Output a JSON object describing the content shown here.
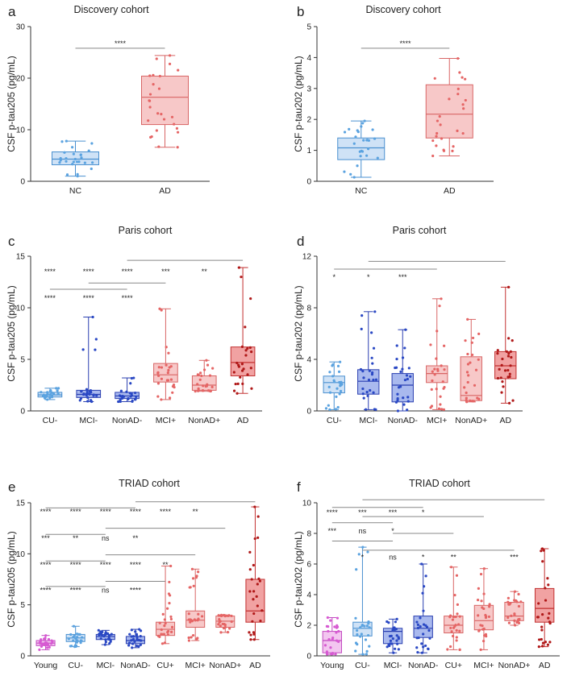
{
  "colors": {
    "light_blue": "#5ba3e0",
    "blue": "#2a48c4",
    "light_red": "#ef8a8a",
    "red": "#d94545",
    "dark_red": "#b01818",
    "magenta": "#d75ad2",
    "axis": "#333333",
    "bracket": "#888888"
  },
  "chart_data": [
    {
      "panel": "a",
      "type": "box",
      "title": "Discovery cohort",
      "ylabel": "CSF p-tau205 (pg/mL)",
      "ylim": [
        0,
        30
      ],
      "yticks": [
        0,
        10,
        20,
        30
      ],
      "categories": [
        "NC",
        "AD"
      ],
      "boxes": [
        {
          "min": 1.0,
          "q1": 3.2,
          "median": 4.3,
          "q3": 5.7,
          "max": 7.8,
          "color": "light_blue"
        },
        {
          "min": 6.6,
          "q1": 11.0,
          "median": 16.3,
          "q3": 20.4,
          "max": 24.4,
          "color": "light_red"
        }
      ],
      "brackets": [
        {
          "from": 0,
          "to": 1,
          "y": 25.8,
          "label": "****"
        }
      ]
    },
    {
      "panel": "b",
      "type": "box",
      "title": "Discovery cohort",
      "ylabel": "CSF p-tau202 (pg/mL)",
      "ylim": [
        0,
        5
      ],
      "yticks": [
        0,
        1,
        2,
        3,
        4,
        5
      ],
      "categories": [
        "NC",
        "AD"
      ],
      "boxes": [
        {
          "min": 0.13,
          "q1": 0.7,
          "median": 1.08,
          "q3": 1.4,
          "max": 1.95,
          "color": "light_blue"
        },
        {
          "min": 0.82,
          "q1": 1.4,
          "median": 2.17,
          "q3": 3.12,
          "max": 3.97,
          "color": "light_red"
        }
      ],
      "brackets": [
        {
          "from": 0,
          "to": 1,
          "y": 4.3,
          "label": "****"
        }
      ]
    },
    {
      "panel": "c",
      "type": "box",
      "title": "Paris cohort",
      "ylabel": "CSF p-tau205 (pg/mL)",
      "ylim": [
        0,
        15
      ],
      "yticks": [
        0,
        5,
        10,
        15
      ],
      "categories": [
        "CU-",
        "MCI-",
        "NonAD-",
        "MCI+",
        "NonAD+",
        "AD"
      ],
      "boxes": [
        {
          "min": 1.1,
          "q1": 1.35,
          "median": 1.55,
          "q3": 1.8,
          "max": 2.2,
          "color": "light_blue"
        },
        {
          "min": 0.9,
          "q1": 1.3,
          "median": 1.6,
          "q3": 2.0,
          "max": 9.1,
          "color": "blue"
        },
        {
          "min": 0.9,
          "q1": 1.2,
          "median": 1.45,
          "q3": 1.8,
          "max": 3.2,
          "color": "blue"
        },
        {
          "min": 1.1,
          "q1": 2.8,
          "median": 3.5,
          "q3": 4.6,
          "max": 9.9,
          "color": "light_red"
        },
        {
          "min": 1.9,
          "q1": 2.0,
          "median": 2.5,
          "q3": 3.4,
          "max": 4.9,
          "color": "light_red"
        },
        {
          "min": 1.7,
          "q1": 3.4,
          "median": 4.7,
          "q3": 6.2,
          "max": 13.9,
          "color": "red"
        }
      ],
      "brackets": [
        {
          "from": 2,
          "to": 5,
          "y": 14.6,
          "label": ""
        },
        {
          "from": 1,
          "to": 3,
          "y": 12.4,
          "label": ""
        },
        {
          "from": 0,
          "to": 2,
          "y": 11.8,
          "label": ""
        }
      ],
      "annotations": [
        {
          "x": 0,
          "y": 13.3,
          "label": "****"
        },
        {
          "x": 1,
          "y": 13.3,
          "label": "****"
        },
        {
          "x": 2,
          "y": 13.3,
          "label": "****"
        },
        {
          "x": 3,
          "y": 13.3,
          "label": "***"
        },
        {
          "x": 4,
          "y": 13.3,
          "label": "**"
        },
        {
          "x": 0,
          "y": 10.7,
          "label": "****"
        },
        {
          "x": 1,
          "y": 10.7,
          "label": "****"
        },
        {
          "x": 2,
          "y": 10.7,
          "label": "****"
        }
      ]
    },
    {
      "panel": "d",
      "type": "box",
      "title": "Paris cohort",
      "ylabel": "CSF p-tau202 (pg/mL)",
      "ylim": [
        0,
        12
      ],
      "yticks": [
        0,
        4,
        8,
        12
      ],
      "categories": [
        "CU-",
        "MCI-",
        "NonAD-",
        "MCI+",
        "NonAD+",
        "AD"
      ],
      "boxes": [
        {
          "min": 0.1,
          "q1": 1.4,
          "median": 2.2,
          "q3": 2.7,
          "max": 3.8,
          "color": "light_blue"
        },
        {
          "min": 0.1,
          "q1": 1.3,
          "median": 2.3,
          "q3": 3.2,
          "max": 7.7,
          "color": "blue"
        },
        {
          "min": 0.0,
          "q1": 0.7,
          "median": 2.0,
          "q3": 2.9,
          "max": 6.3,
          "color": "blue"
        },
        {
          "min": 0.1,
          "q1": 2.2,
          "median": 2.9,
          "q3": 3.5,
          "max": 8.7,
          "color": "light_red"
        },
        {
          "min": 0.7,
          "q1": 0.8,
          "median": 1.2,
          "q3": 4.2,
          "max": 7.1,
          "color": "light_red"
        },
        {
          "min": 0.6,
          "q1": 2.5,
          "median": 3.5,
          "q3": 4.6,
          "max": 9.6,
          "color": "red"
        }
      ],
      "brackets": [
        {
          "from": 1,
          "to": 5,
          "y": 11.6,
          "label": ""
        },
        {
          "from": 0,
          "to": 3,
          "y": 11.0,
          "label": ""
        }
      ],
      "annotations": [
        {
          "x": 0,
          "y": 10.2,
          "label": "*"
        },
        {
          "x": 1,
          "y": 10.2,
          "label": "*"
        },
        {
          "x": 2,
          "y": 10.2,
          "label": "***"
        }
      ]
    },
    {
      "panel": "e",
      "type": "box",
      "title": "TRIAD cohort",
      "ylabel": "CSF p-tau205 (pg/mL)",
      "ylim": [
        0,
        15
      ],
      "yticks": [
        0,
        5,
        10,
        15
      ],
      "categories": [
        "Young",
        "CU-",
        "MCI-",
        "NonAD-",
        "CU+",
        "MCI+",
        "NonAD+",
        "AD"
      ],
      "boxes": [
        {
          "min": 0.6,
          "q1": 1.0,
          "median": 1.25,
          "q3": 1.5,
          "max": 2.0,
          "color": "magenta"
        },
        {
          "min": 0.9,
          "q1": 1.4,
          "median": 1.75,
          "q3": 2.1,
          "max": 2.9,
          "color": "light_blue"
        },
        {
          "min": 1.1,
          "q1": 1.6,
          "median": 1.9,
          "q3": 2.1,
          "max": 2.5,
          "color": "blue"
        },
        {
          "min": 0.8,
          "q1": 1.2,
          "median": 1.5,
          "q3": 1.9,
          "max": 2.6,
          "color": "blue"
        },
        {
          "min": 1.2,
          "q1": 2.0,
          "median": 2.6,
          "q3": 3.3,
          "max": 8.8,
          "color": "light_red"
        },
        {
          "min": 1.5,
          "q1": 2.8,
          "median": 3.5,
          "q3": 4.4,
          "max": 8.5,
          "color": "light_red"
        },
        {
          "min": 2.3,
          "q1": 2.8,
          "median": 3.4,
          "q3": 3.9,
          "max": 4.0,
          "color": "light_red"
        },
        {
          "min": 1.6,
          "q1": 3.3,
          "median": 4.4,
          "q3": 7.5,
          "max": 14.6,
          "color": "red"
        }
      ],
      "brackets": [
        {
          "from": 0,
          "to": 3,
          "y": 14.5,
          "label": ""
        },
        {
          "from": 3,
          "to": 7,
          "y": 15.1,
          "label": ""
        },
        {
          "from": 0,
          "to": 2,
          "y": 11.9,
          "label": ""
        },
        {
          "from": 2,
          "to": 6,
          "y": 12.5,
          "label": ""
        },
        {
          "from": 0,
          "to": 2,
          "y": 9.3,
          "label": ""
        },
        {
          "from": 2,
          "to": 5,
          "y": 9.9,
          "label": ""
        },
        {
          "from": 0,
          "to": 2,
          "y": 6.8,
          "label": ""
        },
        {
          "from": 2,
          "to": 4,
          "y": 7.3,
          "label": ""
        }
      ],
      "annotations": [
        {
          "x": 0,
          "y": 13.9,
          "label": "****"
        },
        {
          "x": 1,
          "y": 13.9,
          "label": "****"
        },
        {
          "x": 2,
          "y": 13.9,
          "label": "****"
        },
        {
          "x": 3,
          "y": 13.9,
          "label": "****"
        },
        {
          "x": 4,
          "y": 13.9,
          "label": "****"
        },
        {
          "x": 5,
          "y": 13.9,
          "label": "**"
        },
        {
          "x": 0,
          "y": 11.3,
          "label": "***"
        },
        {
          "x": 1,
          "y": 11.3,
          "label": "**"
        },
        {
          "x": 2,
          "y": 11.3,
          "label": "ns"
        },
        {
          "x": 3,
          "y": 11.3,
          "label": "**"
        },
        {
          "x": 0,
          "y": 8.7,
          "label": "****"
        },
        {
          "x": 1,
          "y": 8.7,
          "label": "****"
        },
        {
          "x": 2,
          "y": 8.7,
          "label": "****"
        },
        {
          "x": 3,
          "y": 8.7,
          "label": "****"
        },
        {
          "x": 4,
          "y": 8.7,
          "label": "**"
        },
        {
          "x": 0,
          "y": 6.2,
          "label": "****"
        },
        {
          "x": 1,
          "y": 6.2,
          "label": "****"
        },
        {
          "x": 2,
          "y": 6.2,
          "label": "ns"
        },
        {
          "x": 3,
          "y": 6.2,
          "label": "****"
        }
      ]
    },
    {
      "panel": "f",
      "type": "box",
      "title": "TRIAD cohort",
      "ylabel": "CSF p-tau202 (pg/mL)",
      "ylim": [
        0,
        10
      ],
      "yticks": [
        0,
        2,
        4,
        6,
        8,
        10
      ],
      "categories": [
        "Young",
        "CU-",
        "MCI-",
        "NonAD-",
        "CU+",
        "MCI+",
        "NonAD+",
        "AD"
      ],
      "boxes": [
        {
          "min": 0.1,
          "q1": 0.2,
          "median": 1.0,
          "q3": 1.6,
          "max": 2.5,
          "color": "magenta"
        },
        {
          "min": 0.1,
          "q1": 1.3,
          "median": 1.8,
          "q3": 2.2,
          "max": 7.1,
          "color": "light_blue"
        },
        {
          "min": 0.2,
          "q1": 0.8,
          "median": 1.6,
          "q3": 1.8,
          "max": 2.4,
          "color": "blue"
        },
        {
          "min": 0.2,
          "q1": 1.2,
          "median": 1.8,
          "q3": 2.6,
          "max": 6.0,
          "color": "blue"
        },
        {
          "min": 0.4,
          "q1": 1.5,
          "median": 2.0,
          "q3": 2.6,
          "max": 5.8,
          "color": "light_red"
        },
        {
          "min": 0.4,
          "q1": 1.7,
          "median": 2.3,
          "q3": 3.3,
          "max": 5.7,
          "color": "light_red"
        },
        {
          "min": 2.0,
          "q1": 2.3,
          "median": 2.6,
          "q3": 3.5,
          "max": 4.2,
          "color": "light_red"
        },
        {
          "min": 0.6,
          "q1": 2.2,
          "median": 3.1,
          "q3": 4.4,
          "max": 7.0,
          "color": "red"
        }
      ],
      "brackets": [
        {
          "from": 0,
          "to": 3,
          "y": 9.7,
          "label": ""
        },
        {
          "from": 1,
          "to": 7,
          "y": 10.2,
          "label": ""
        },
        {
          "from": 0,
          "to": 2,
          "y": 8.7,
          "label": ""
        },
        {
          "from": 1,
          "to": 5,
          "y": 9.1,
          "label": ""
        },
        {
          "from": 0,
          "to": 2,
          "y": 7.5,
          "label": ""
        },
        {
          "from": 2,
          "to": 4,
          "y": 8.0,
          "label": ""
        },
        {
          "from": 1,
          "to": 6,
          "y": 6.9,
          "label": ""
        }
      ],
      "annotations": [
        {
          "x": 0,
          "y": 9.2,
          "label": "****"
        },
        {
          "x": 1,
          "y": 9.2,
          "label": "***"
        },
        {
          "x": 2,
          "y": 9.2,
          "label": "***"
        },
        {
          "x": 3,
          "y": 9.2,
          "label": "*"
        },
        {
          "x": 0,
          "y": 8.0,
          "label": "***"
        },
        {
          "x": 1,
          "y": 8.0,
          "label": "ns"
        },
        {
          "x": 2,
          "y": 8.0,
          "label": "*"
        },
        {
          "x": 1,
          "y": 6.3,
          "label": "*"
        },
        {
          "x": 2,
          "y": 6.3,
          "label": "ns"
        },
        {
          "x": 3,
          "y": 6.3,
          "label": "*"
        },
        {
          "x": 4,
          "y": 6.3,
          "label": "**"
        },
        {
          "x": 6,
          "y": 6.3,
          "label": "***"
        }
      ]
    }
  ]
}
